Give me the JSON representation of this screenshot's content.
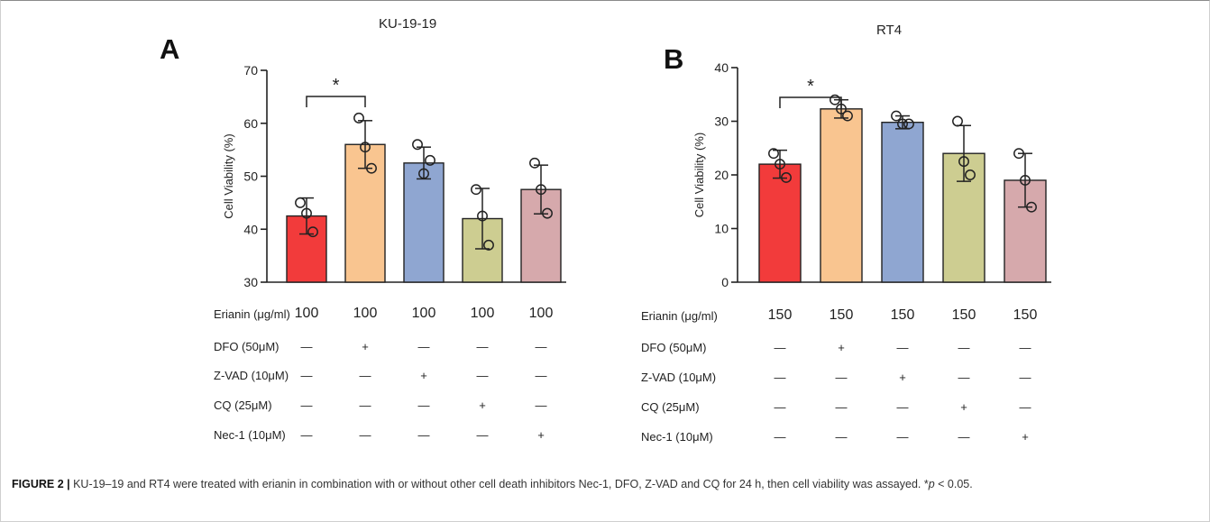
{
  "chart_data": [
    {
      "type": "bar",
      "panel_label": "A",
      "title": "KU-19-19",
      "ylabel": "Cell Viability (%)",
      "xlabel": "",
      "ylim": [
        30,
        70
      ],
      "yticks": [
        30,
        40,
        50,
        60,
        70
      ],
      "categories": [
        "100",
        "100",
        "100",
        "100",
        "100"
      ],
      "values": [
        42.5,
        56,
        52.5,
        42,
        47.5
      ],
      "errors": [
        3.4,
        4.5,
        3,
        5.7,
        4.6
      ],
      "points": [
        [
          45,
          39.5,
          43
        ],
        [
          61,
          51.5,
          55.5
        ],
        [
          56,
          53,
          50.5
        ],
        [
          47.5,
          37,
          42.5
        ],
        [
          52.5,
          43,
          47.5
        ]
      ],
      "colors": [
        "#f23b3b",
        "#f9c590",
        "#8fa6d1",
        "#cdcd91",
        "#d6a9ac"
      ],
      "significance": {
        "from": 0,
        "to": 1,
        "label": "*"
      },
      "conditions": [
        {
          "label": "Erianin (μg/ml)",
          "values": [
            "100",
            "100",
            "100",
            "100",
            "100"
          ]
        },
        {
          "label": "DFO (50μM)",
          "values": [
            "—",
            "+",
            "—",
            "—",
            "—"
          ]
        },
        {
          "label": "Z-VAD (10μM)",
          "values": [
            "—",
            "—",
            "+",
            "—",
            "—"
          ]
        },
        {
          "label": "CQ (25μM)",
          "values": [
            "—",
            "—",
            "—",
            "+",
            "—"
          ]
        },
        {
          "label": "Nec-1 (10μM)",
          "values": [
            "—",
            "—",
            "—",
            "—",
            "+"
          ]
        }
      ]
    },
    {
      "type": "bar",
      "panel_label": "B",
      "title": "RT4",
      "ylabel": "Cell Viability (%)",
      "xlabel": "",
      "ylim": [
        0,
        40
      ],
      "yticks": [
        0,
        10,
        20,
        30,
        40
      ],
      "categories": [
        "150",
        "150",
        "150",
        "150",
        "150"
      ],
      "values": [
        22,
        32.3,
        29.8,
        24,
        19
      ],
      "errors": [
        2.6,
        1.7,
        1.2,
        5.2,
        5
      ],
      "points": [
        [
          24,
          19.5,
          22
        ],
        [
          34,
          31,
          32.3
        ],
        [
          31,
          29.5,
          29.5
        ],
        [
          30,
          20,
          22.5
        ],
        [
          24,
          14,
          19
        ]
      ],
      "colors": [
        "#f23b3b",
        "#f9c590",
        "#8fa6d1",
        "#cdcd91",
        "#d6a9ac"
      ],
      "significance": {
        "from": 0,
        "to": 1,
        "label": "*"
      },
      "conditions": [
        {
          "label": "Erianin (μg/ml)",
          "values": [
            "150",
            "150",
            "150",
            "150",
            "150"
          ]
        },
        {
          "label": "DFO (50μM)",
          "values": [
            "—",
            "+",
            "—",
            "—",
            "—"
          ]
        },
        {
          "label": "Z-VAD (10μM)",
          "values": [
            "—",
            "—",
            "+",
            "—",
            "—"
          ]
        },
        {
          "label": "CQ (25μM)",
          "values": [
            "—",
            "—",
            "—",
            "+",
            "—"
          ]
        },
        {
          "label": "Nec-1 (10μM)",
          "values": [
            "—",
            "—",
            "—",
            "—",
            "+"
          ]
        }
      ]
    }
  ],
  "caption": {
    "label": "FIGURE 2 |",
    "text_before": " KU-19–19 and RT4 were treated with erianin in combination with or without other cell death inhibitors Nec-1, DFO, Z-VAD and CQ for 24 h, then cell viability was assayed. *",
    "italic": "p",
    "text_after": " < 0.05."
  }
}
